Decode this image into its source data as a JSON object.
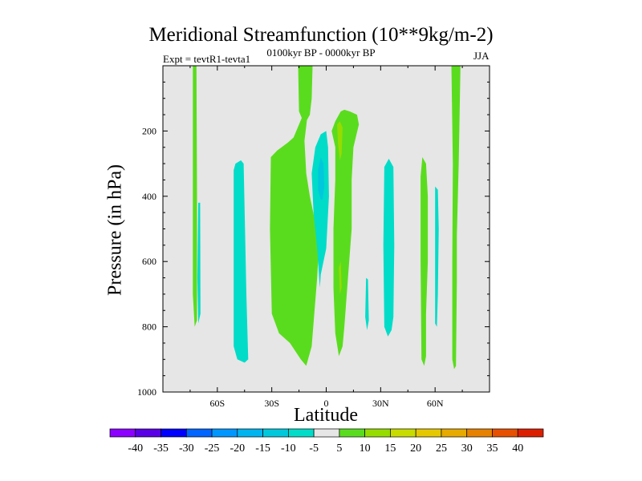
{
  "title": "Meridional Streamfunction (10**9kg/m-2)",
  "subtitle": "0100kyr BP - 0000kyr BP",
  "left_note": "Expt = tevtR1-tevta1",
  "right_note": "JJA",
  "colors": {
    "background": "#e6e6e6",
    "contour_levels": [
      "#8c00ff",
      "#5a00e6",
      "#0000ff",
      "#0064ff",
      "#0096ff",
      "#00b4f0",
      "#00c8dc",
      "#00dcc8",
      "#e6e6e6",
      "#5adc1e",
      "#96dc00",
      "#c8dc00",
      "#e6c800",
      "#e6aa00",
      "#e68200",
      "#e65000",
      "#dc1e00"
    ]
  },
  "chart_data": {
    "type": "contour",
    "title": "Meridional Streamfunction (10**9kg/m-2)",
    "subtitle": "0100kyr BP - 0000kyr BP",
    "xlabel": "Latitude",
    "ylabel": "Pressure (in hPa)",
    "xlim": [
      -90,
      90
    ],
    "ylim": [
      1000,
      0
    ],
    "x_ticks": [
      {
        "value": -60,
        "label": "60S"
      },
      {
        "value": -30,
        "label": "30S"
      },
      {
        "value": 0,
        "label": "0"
      },
      {
        "value": 30,
        "label": "30N"
      },
      {
        "value": 60,
        "label": "60N"
      }
    ],
    "y_ticks": [
      {
        "value": 200,
        "label": "200"
      },
      {
        "value": 400,
        "label": "400"
      },
      {
        "value": 600,
        "label": "600"
      },
      {
        "value": 800,
        "label": "800"
      },
      {
        "value": 1000,
        "label": "1000"
      }
    ],
    "colorbar": {
      "labels": [
        "-40",
        "-35",
        "-30",
        "-25",
        "-20",
        "-15",
        "-10",
        "-5",
        "5",
        "10",
        "15",
        "20",
        "25",
        "30",
        "35",
        "40"
      ],
      "colors": [
        "#8c00ff",
        "#5a00e6",
        "#0000ff",
        "#0064ff",
        "#0096ff",
        "#00b4f0",
        "#00c8dc",
        "#00dcc8",
        "#e6e6e6",
        "#5adc1e",
        "#96dc00",
        "#c8dc00",
        "#e6c800",
        "#e6aa00",
        "#e68200",
        "#e65000",
        "#dc1e00"
      ]
    },
    "regions": [
      {
        "name": "green-column-75S",
        "level": "5 to 10",
        "color": "#5adc1e",
        "points": [
          [
            -73.5,
            0
          ],
          [
            -71.5,
            0
          ],
          [
            -71.2,
            400
          ],
          [
            -71.2,
            780
          ],
          [
            -72.5,
            800
          ],
          [
            -73.5,
            700
          ]
        ]
      },
      {
        "name": "cyan-strip-71S",
        "level": "-10 to -5",
        "color": "#00dcc8",
        "points": [
          [
            -70.5,
            420
          ],
          [
            -69.5,
            420
          ],
          [
            -69.3,
            760
          ],
          [
            -70.5,
            790
          ],
          [
            -71,
            650
          ]
        ]
      },
      {
        "name": "cyan-band-45S",
        "level": "-10 to -5",
        "color": "#00dcc8",
        "points": [
          [
            -50,
            300
          ],
          [
            -47,
            290
          ],
          [
            -45.5,
            300
          ],
          [
            -44,
            700
          ],
          [
            -43,
            900
          ],
          [
            -45,
            910
          ],
          [
            -49,
            900
          ],
          [
            -51,
            860
          ],
          [
            -51,
            320
          ]
        ]
      },
      {
        "name": "green-band-22S",
        "level": "5 to 10",
        "color": "#5adc1e",
        "points": [
          [
            -30.5,
            280
          ],
          [
            -27,
            260
          ],
          [
            -21,
            235
          ],
          [
            -18,
            220
          ],
          [
            -12,
            140
          ],
          [
            -10.5,
            160
          ],
          [
            -12,
            230
          ],
          [
            -11,
            330
          ],
          [
            -9,
            400
          ],
          [
            -6,
            480
          ],
          [
            -4,
            550
          ],
          [
            -5,
            650
          ],
          [
            -8,
            860
          ],
          [
            -11,
            920
          ],
          [
            -14,
            900
          ],
          [
            -20,
            850
          ],
          [
            -26,
            820
          ],
          [
            -30,
            760
          ],
          [
            -31,
            500
          ]
        ]
      },
      {
        "name": "green-column-14S",
        "level": "5 to 10",
        "color": "#5adc1e",
        "points": [
          [
            -15.5,
            0
          ],
          [
            -7.5,
            0
          ],
          [
            -8,
            100
          ],
          [
            -9,
            150
          ],
          [
            -12,
            180
          ],
          [
            -15,
            140
          ]
        ]
      },
      {
        "name": "cyan-center-3S",
        "level": "-10 to -5",
        "color": "#00dcc8",
        "points": [
          [
            -6,
            250
          ],
          [
            -3,
            210
          ],
          [
            0,
            200
          ],
          [
            1,
            250
          ],
          [
            1.5,
            400
          ],
          [
            0,
            560
          ],
          [
            -3,
            640
          ],
          [
            -3.5,
            680
          ],
          [
            -5,
            560
          ],
          [
            -7,
            450
          ],
          [
            -8,
            330
          ]
        ]
      },
      {
        "name": "blue-core-3S",
        "level": "-15 to -10",
        "color": "#00c8dc",
        "points": [
          [
            -4.5,
            320
          ],
          [
            -3,
            280
          ],
          [
            -1.5,
            300
          ],
          [
            -1,
            370
          ],
          [
            -2,
            410
          ],
          [
            -3,
            410
          ],
          [
            -4.5,
            380
          ]
        ]
      },
      {
        "name": "green-band-10N",
        "level": "5 to 10",
        "color": "#5adc1e",
        "points": [
          [
            5,
            170
          ],
          [
            6.5,
            155
          ],
          [
            8,
            140
          ],
          [
            10,
            135
          ],
          [
            13,
            140
          ],
          [
            17,
            150
          ],
          [
            18,
            180
          ],
          [
            15,
            250
          ],
          [
            14,
            350
          ],
          [
            14,
            500
          ],
          [
            12,
            650
          ],
          [
            10,
            800
          ],
          [
            9,
            860
          ],
          [
            7,
            890
          ],
          [
            5,
            820
          ],
          [
            4,
            680
          ],
          [
            4,
            500
          ],
          [
            5,
            350
          ],
          [
            5,
            250
          ],
          [
            3,
            200
          ]
        ]
      },
      {
        "name": "lime-core-7N",
        "level": "10 to 15",
        "color": "#96dc00",
        "points": [
          [
            6,
            180
          ],
          [
            7.5,
            170
          ],
          [
            9,
            190
          ],
          [
            8.5,
            270
          ],
          [
            7.5,
            290
          ],
          [
            6.5,
            240
          ]
        ]
      },
      {
        "name": "lime-core-8N",
        "level": "10 to 15",
        "color": "#96dc00",
        "points": [
          [
            7,
            620
          ],
          [
            8,
            600
          ],
          [
            8.5,
            680
          ],
          [
            7.5,
            700
          ]
        ]
      },
      {
        "name": "cyan-strip-23N",
        "level": "-10 to -5",
        "color": "#00dcc8",
        "points": [
          [
            22,
            650
          ],
          [
            23,
            655
          ],
          [
            23.5,
            780
          ],
          [
            22.5,
            810
          ],
          [
            21.5,
            770
          ]
        ]
      },
      {
        "name": "cyan-strip-34N",
        "level": "-10 to -5",
        "color": "#00dcc8",
        "points": [
          [
            32,
            310
          ],
          [
            34.5,
            285
          ],
          [
            37,
            310
          ],
          [
            37.5,
            550
          ],
          [
            37,
            770
          ],
          [
            36,
            810
          ],
          [
            34,
            830
          ],
          [
            32,
            800
          ],
          [
            31.5,
            550
          ]
        ]
      },
      {
        "name": "green-strip-55N",
        "level": "5 to 10",
        "color": "#5adc1e",
        "points": [
          [
            53,
            280
          ],
          [
            55,
            300
          ],
          [
            56,
            400
          ],
          [
            56,
            600
          ],
          [
            55,
            760
          ],
          [
            55,
            890
          ],
          [
            54,
            920
          ],
          [
            52.5,
            900
          ],
          [
            52,
            600
          ],
          [
            52,
            340
          ]
        ]
      },
      {
        "name": "cyan-strip-61N",
        "level": "-10 to -5",
        "color": "#00dcc8",
        "points": [
          [
            60,
            370
          ],
          [
            61.5,
            380
          ],
          [
            62,
            500
          ],
          [
            61.5,
            700
          ],
          [
            61,
            800
          ],
          [
            60,
            790
          ],
          [
            60,
            500
          ]
        ]
      },
      {
        "name": "green-column-70N",
        "level": "5 to 10",
        "color": "#5adc1e",
        "points": [
          [
            69,
            0
          ],
          [
            74,
            0
          ],
          [
            73,
            300
          ],
          [
            72,
            520
          ],
          [
            72,
            660
          ],
          [
            71.5,
            920
          ],
          [
            70.5,
            930
          ],
          [
            69.5,
            900
          ],
          [
            69.5,
            600
          ],
          [
            69.8,
            300
          ]
        ]
      }
    ]
  }
}
